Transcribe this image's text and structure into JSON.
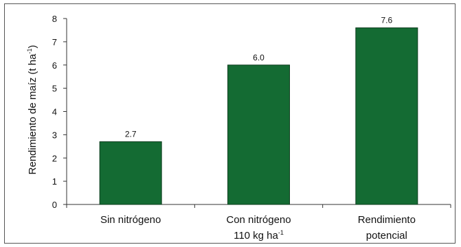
{
  "chart_data": {
    "type": "bar",
    "categories": [
      {
        "line1": "Sin nitrógeno",
        "line2": "",
        "line2_sup": ""
      },
      {
        "line1": "Con nitrógeno",
        "line2": "110 kg ha",
        "line2_sup": "-1"
      },
      {
        "line1": "Rendimiento",
        "line2": "potencial",
        "line2_sup": ""
      }
    ],
    "values": [
      2.7,
      6.0,
      7.6
    ],
    "value_labels": [
      "2.7",
      "6.0",
      "7.6"
    ],
    "ylabel": "Rendimiento de maíz (t ha",
    "ylabel_sup": "-1",
    "ylabel_close": ")",
    "ylim": [
      0,
      8
    ],
    "yticks": [
      "0",
      "1",
      "2",
      "3",
      "4",
      "5",
      "6",
      "7",
      "8"
    ],
    "bar_color": "#146b33",
    "bar_edge": "#0d3d1e",
    "grid": false,
    "legend": "none"
  }
}
